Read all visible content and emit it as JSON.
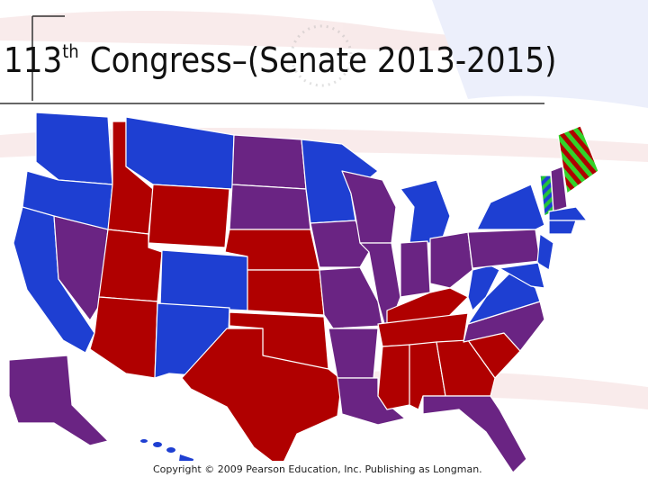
{
  "title": {
    "number": "113",
    "suffix": "th",
    "text": "Congress–(Senate 2013-2015)"
  },
  "copyright": "Copyright © 2009 Pearson Education, Inc. Publishing as Longman."
}
